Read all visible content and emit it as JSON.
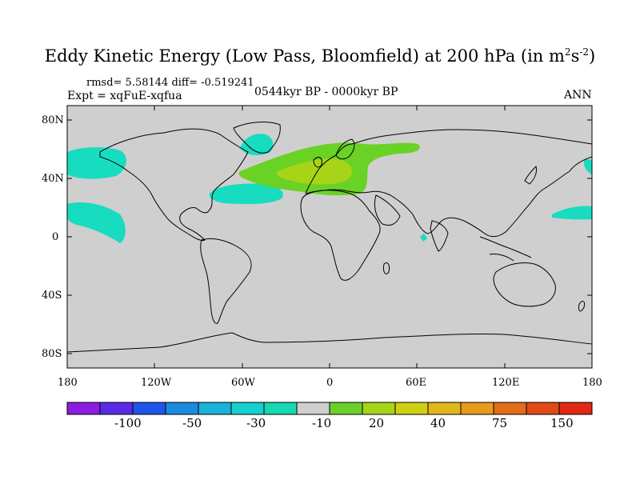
{
  "title": {
    "text": "Eddy Kinetic Energy (Low Pass, Bloomfield) at 200 hPa (in m",
    "sup1": "2",
    "mid": "s",
    "sup2": "-2",
    "end": ")"
  },
  "stats": "rmsd= 5.58144 diff= -0.519241",
  "experiment": "Expt = xqFuE-xqfua",
  "period": "0544kyr BP - 0000kyr BP",
  "season": "ANN",
  "lat_labels": [
    "80N",
    "40N",
    "0",
    "40S",
    "80S"
  ],
  "lon_labels": [
    "180",
    "120W",
    "60W",
    "0",
    "60E",
    "120E",
    "180"
  ],
  "colorbar": {
    "labels": [
      "-100",
      "-50",
      "-30",
      "-10",
      "20",
      "40",
      "75",
      "150"
    ],
    "colors": [
      "#8a1de0",
      "#5a2ae6",
      "#1f55e8",
      "#1b8be0",
      "#1ab2d8",
      "#16cfcf",
      "#17d8b0",
      "#cfcfcf",
      "#6cd02a",
      "#a6d418",
      "#d0d012",
      "#e0b818",
      "#e89a1a",
      "#e06d18",
      "#e04a16",
      "#e02812"
    ]
  },
  "colors": {
    "land_bg": "#cfcfcf",
    "cyan": "#18dcc0",
    "green1": "#6ad224",
    "green2": "#a7d418"
  }
}
